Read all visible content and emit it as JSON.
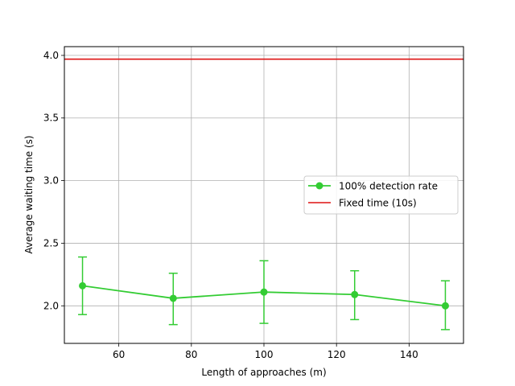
{
  "chart_data": {
    "type": "line",
    "xlabel": "Length of approaches (m)",
    "ylabel": "Average waiting time (s)",
    "xlim": [
      45,
      155
    ],
    "ylim": [
      1.7,
      4.07
    ],
    "xticks": [
      60,
      80,
      100,
      120,
      140
    ],
    "yticks": [
      2.0,
      2.5,
      3.0,
      3.5,
      4.0
    ],
    "xtick_labels": [
      "60",
      "80",
      "100",
      "120",
      "140"
    ],
    "ytick_labels": [
      "2.0",
      "2.5",
      "3.0",
      "3.5",
      "4.0"
    ],
    "grid": true,
    "legend_position": "center-right",
    "series": [
      {
        "name": "100% detection rate",
        "kind": "errorbar-line",
        "color": "#33cc33",
        "x": [
          50,
          75,
          100,
          125,
          150
        ],
        "y": [
          2.16,
          2.06,
          2.11,
          2.09,
          2.0
        ],
        "err_low": [
          1.93,
          1.85,
          1.86,
          1.89,
          1.81
        ],
        "err_high": [
          2.39,
          2.26,
          2.36,
          2.28,
          2.2
        ]
      },
      {
        "name": "Fixed time (10s)",
        "kind": "hline",
        "color": "#dd1111",
        "y": 3.97
      }
    ]
  }
}
